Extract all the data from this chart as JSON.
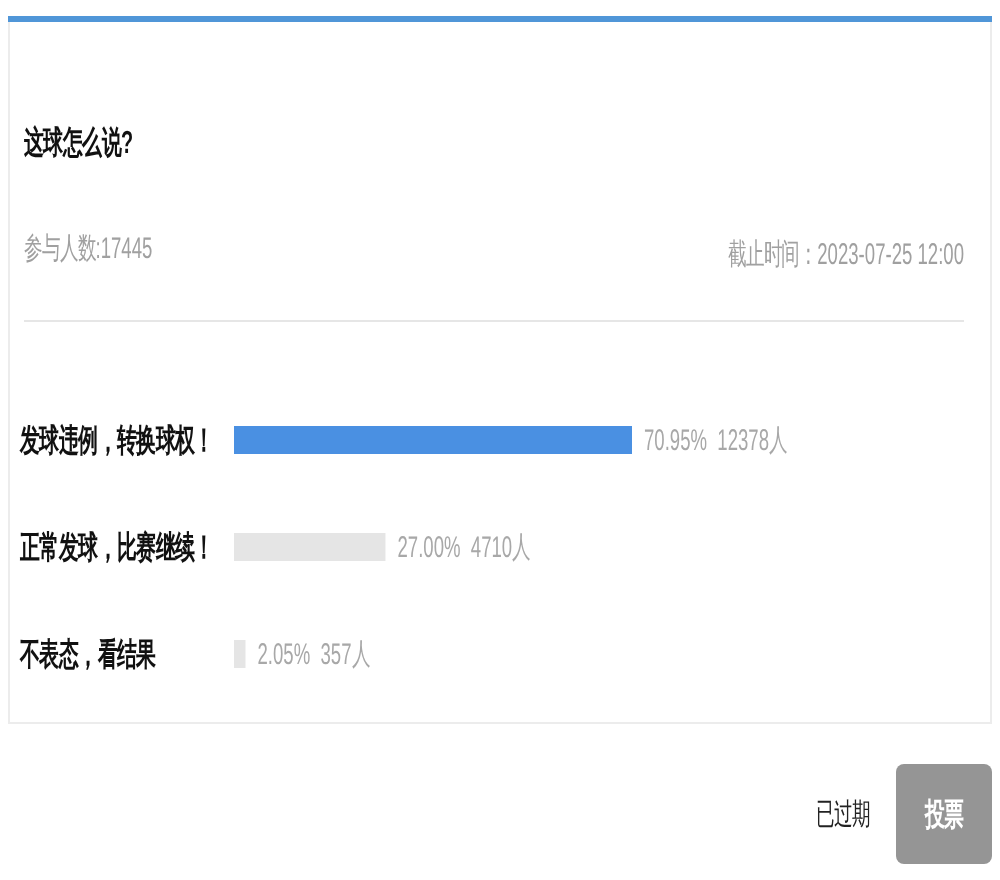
{
  "chart_data": {
    "type": "bar",
    "orientation": "horizontal",
    "title": "这球怎么说?",
    "subtitle": "参与人数:17445",
    "categories": [
      "发球违例，转换球权！",
      "正常发球，比赛继续！",
      "不表态，看结果"
    ],
    "values": [
      70.95,
      27.0,
      2.05
    ],
    "colors": [
      "#4a90e2",
      "#e5e5e5",
      "#e5e5e5"
    ],
    "value_labels": [
      "70.95%  12378人",
      "27.00%  4710人",
      "2.05%  357人"
    ],
    "annotations": [
      "截止时间：2023-07-25 12:00",
      "已过期",
      "投票"
    ]
  }
}
